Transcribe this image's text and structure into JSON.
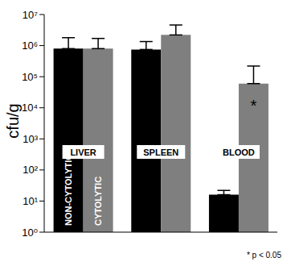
{
  "chart_data": {
    "type": "bar",
    "log": "y",
    "y_label": "cfu/g",
    "footnote": "* p < 0.05",
    "categories": [
      "LIVER",
      "SPLEEN",
      "BLOOD"
    ],
    "ylim": [
      1,
      10000000
    ],
    "yticks": [
      {
        "value": 1,
        "label": "10⁰"
      },
      {
        "value": 10,
        "label": "10¹"
      },
      {
        "value": 100,
        "label": "10²"
      },
      {
        "value": 1000,
        "label": "10³"
      },
      {
        "value": 10000,
        "label": "10⁴"
      },
      {
        "value": 100000,
        "label": "10⁵"
      },
      {
        "value": 1000000,
        "label": "10⁶"
      },
      {
        "value": 10000000,
        "label": "10⁷"
      }
    ],
    "series": [
      {
        "name": "NON-CYTOLYTIC",
        "color": "#000000",
        "values": [
          800000,
          750000,
          16
        ],
        "errors": [
          1000000,
          600000,
          6
        ]
      },
      {
        "name": "CYTOLYTIC",
        "color": "#7f7f7f",
        "values": [
          800000,
          2200000,
          60000
        ],
        "errors": [
          900000,
          2400000,
          160000
        ],
        "significance": [
          null,
          null,
          "*"
        ]
      }
    ]
  }
}
